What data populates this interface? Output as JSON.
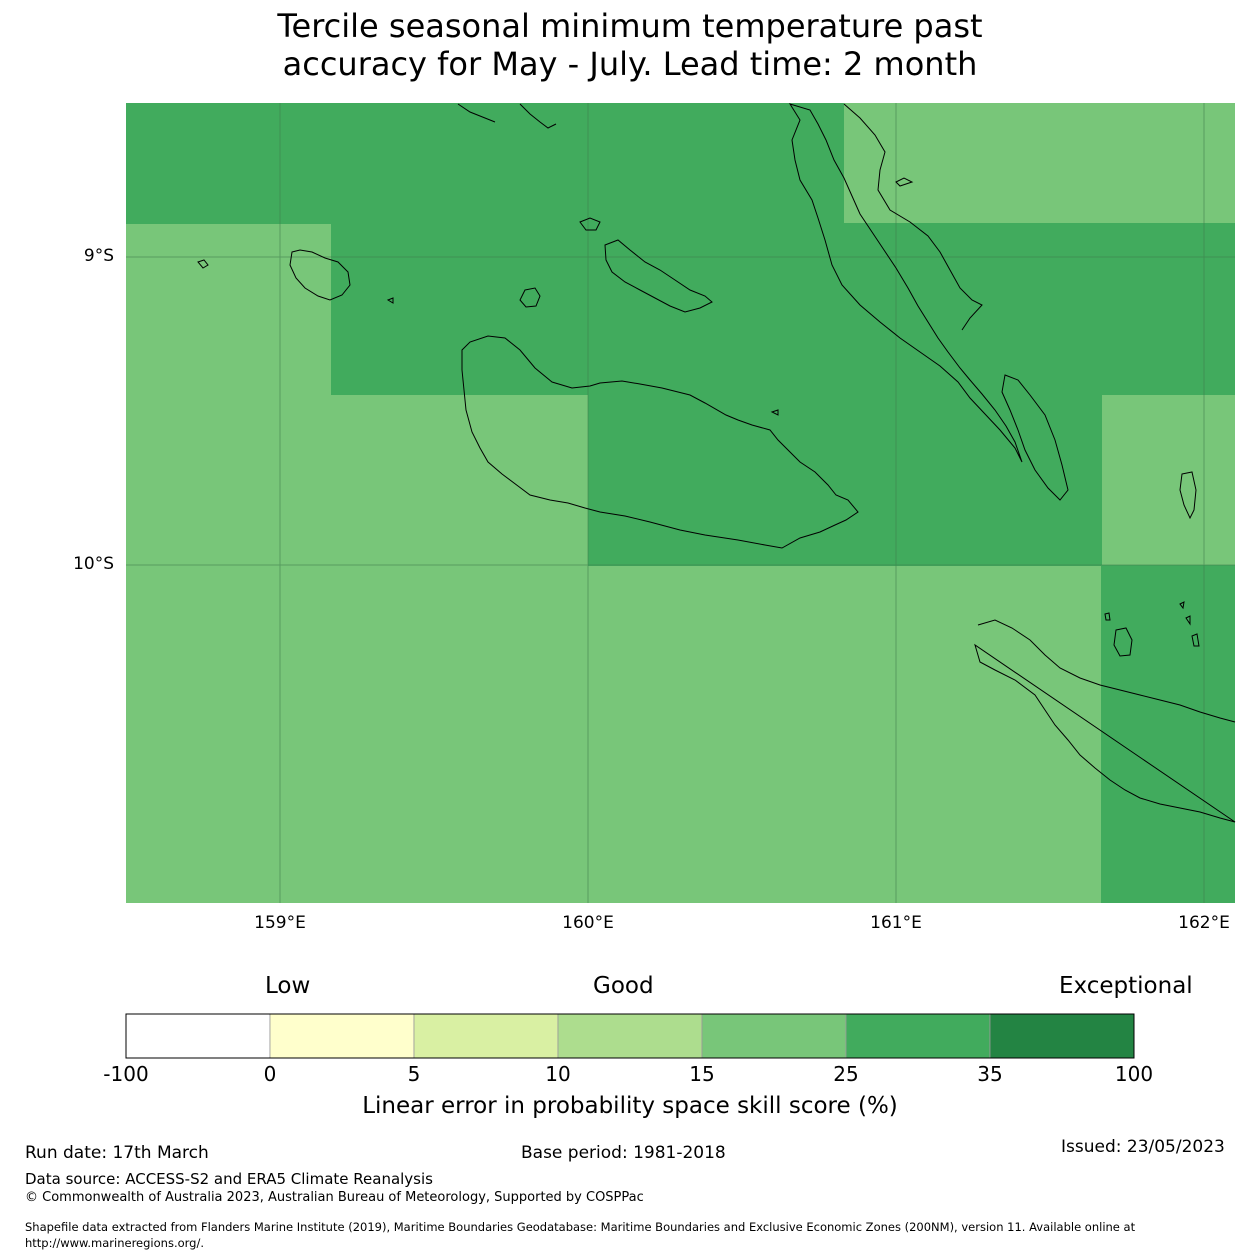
{
  "title_line1": "Tercile seasonal minimum temperature past",
  "title_line2": "accuracy for May - July. Lead time: 2 month",
  "map": {
    "lat_labels": [
      "9°S",
      "10°S"
    ],
    "lon_labels": [
      "159°E",
      "160°E",
      "161°E",
      "162°E"
    ],
    "cell_colors": {
      "dark": "#41ab5d",
      "light": "#78c679"
    }
  },
  "colorbar": {
    "category_labels": {
      "low": "Low",
      "good": "Good",
      "exceptional": "Exceptional"
    },
    "ticks": [
      "-100",
      "0",
      "5",
      "10",
      "15",
      "25",
      "35",
      "100"
    ],
    "colors": [
      "#ffffff",
      "#ffffcc",
      "#d9f0a3",
      "#addd8e",
      "#78c679",
      "#41ab5d",
      "#238443"
    ],
    "title": "Linear error in probability space skill score (%)"
  },
  "footer": {
    "run_date": "Run date: 17th March",
    "base_period": "Base period: 1981-2018",
    "issued": "Issued: 23/05/2023",
    "data_source": "Data source: ACCESS-S2 and ERA5 Climate Reanalysis",
    "copyright": "© Commonwealth of Australia 2023, Australian Bureau of Meteorology, Supported by COSPPac",
    "shapefile_line1": "Shapefile data extracted from Flanders Marine Institute (2019), Maritime Boundaries Geodatabase: Maritime Boundaries and Exclusive Economic Zones (200NM), version 11. Available online at",
    "shapefile_line2": "http://www.marineregions.org/."
  }
}
